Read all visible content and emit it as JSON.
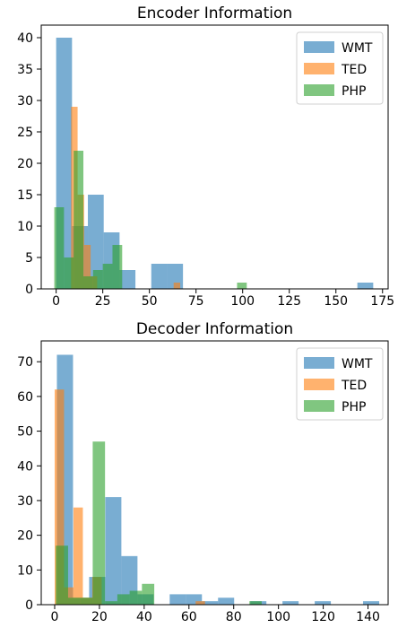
{
  "chart_data": [
    {
      "type": "bar",
      "title": "Encoder Information",
      "xlabel": "",
      "ylabel": "",
      "xlim": [
        -8,
        178
      ],
      "ylim": [
        0,
        42
      ],
      "xticks": [
        0,
        25,
        50,
        75,
        100,
        125,
        150,
        175
      ],
      "yticks": [
        0,
        5,
        10,
        15,
        20,
        25,
        30,
        35,
        40
      ],
      "legend": "top-right",
      "grid": false,
      "series": [
        {
          "name": "WMT",
          "color": "#1f77b4",
          "bins": [
            {
              "x0": 0,
              "x1": 8.5,
              "value": 40
            },
            {
              "x0": 8.5,
              "x1": 17,
              "value": 10
            },
            {
              "x0": 17,
              "x1": 25.5,
              "value": 15
            },
            {
              "x0": 25.5,
              "x1": 34,
              "value": 9
            },
            {
              "x0": 34,
              "x1": 42.5,
              "value": 3
            },
            {
              "x0": 51,
              "x1": 59.5,
              "value": 4
            },
            {
              "x0": 59.5,
              "x1": 68,
              "value": 4
            },
            {
              "x0": 161.5,
              "x1": 170,
              "value": 1
            }
          ]
        },
        {
          "name": "TED",
          "color": "#ff7f0e",
          "bins": [
            {
              "x0": 8,
              "x1": 11.5,
              "value": 29
            },
            {
              "x0": 11.5,
              "x1": 15,
              "value": 15
            },
            {
              "x0": 15,
              "x1": 18.5,
              "value": 7
            },
            {
              "x0": 18.5,
              "x1": 22,
              "value": 2
            },
            {
              "x0": 63,
              "x1": 66.5,
              "value": 1
            }
          ]
        },
        {
          "name": "PHP",
          "color": "#2ca02c",
          "bins": [
            {
              "x0": -1,
              "x1": 4.2,
              "value": 13
            },
            {
              "x0": 4.2,
              "x1": 9.4,
              "value": 5
            },
            {
              "x0": 9.4,
              "x1": 14.6,
              "value": 22
            },
            {
              "x0": 14.6,
              "x1": 19.8,
              "value": 2
            },
            {
              "x0": 19.8,
              "x1": 25,
              "value": 3
            },
            {
              "x0": 25,
              "x1": 30.2,
              "value": 4
            },
            {
              "x0": 30.2,
              "x1": 35.4,
              "value": 7
            },
            {
              "x0": 97,
              "x1": 102.2,
              "value": 1
            }
          ]
        }
      ]
    },
    {
      "type": "bar",
      "title": "Decoder Information",
      "xlabel": "",
      "ylabel": "",
      "xlim": [
        -6,
        149
      ],
      "ylim": [
        0,
        76
      ],
      "xticks": [
        0,
        20,
        40,
        60,
        80,
        100,
        120,
        140
      ],
      "yticks": [
        0,
        10,
        20,
        30,
        40,
        50,
        60,
        70
      ],
      "legend": "top-right",
      "grid": false,
      "series": [
        {
          "name": "WMT",
          "color": "#1f77b4",
          "bins": [
            {
              "x0": 1,
              "x1": 8.2,
              "value": 72
            },
            {
              "x0": 8.2,
              "x1": 15.4,
              "value": 2
            },
            {
              "x0": 15.4,
              "x1": 22.6,
              "value": 8
            },
            {
              "x0": 22.6,
              "x1": 29.8,
              "value": 31
            },
            {
              "x0": 29.8,
              "x1": 37,
              "value": 14
            },
            {
              "x0": 37,
              "x1": 44.2,
              "value": 3
            },
            {
              "x0": 51.4,
              "x1": 58.6,
              "value": 3
            },
            {
              "x0": 58.6,
              "x1": 65.8,
              "value": 3
            },
            {
              "x0": 65.8,
              "x1": 73,
              "value": 1
            },
            {
              "x0": 73,
              "x1": 80.2,
              "value": 2
            },
            {
              "x0": 87.4,
              "x1": 94.6,
              "value": 1
            },
            {
              "x0": 101.8,
              "x1": 109,
              "value": 1
            },
            {
              "x0": 116.2,
              "x1": 123.4,
              "value": 1
            },
            {
              "x0": 137.8,
              "x1": 145,
              "value": 1
            }
          ]
        },
        {
          "name": "TED",
          "color": "#ff7f0e",
          "bins": [
            {
              "x0": 0,
              "x1": 4.2,
              "value": 62
            },
            {
              "x0": 4.2,
              "x1": 8.4,
              "value": 5
            },
            {
              "x0": 8.4,
              "x1": 12.6,
              "value": 28
            },
            {
              "x0": 12.6,
              "x1": 16.8,
              "value": 2
            },
            {
              "x0": 16.8,
              "x1": 21,
              "value": 8
            },
            {
              "x0": 63,
              "x1": 67.2,
              "value": 1
            }
          ]
        },
        {
          "name": "PHP",
          "color": "#2ca02c",
          "bins": [
            {
              "x0": 0.5,
              "x1": 6,
              "value": 17
            },
            {
              "x0": 6,
              "x1": 11.5,
              "value": 2
            },
            {
              "x0": 11.5,
              "x1": 17,
              "value": 2
            },
            {
              "x0": 17,
              "x1": 22.5,
              "value": 47
            },
            {
              "x0": 22.5,
              "x1": 28,
              "value": 1
            },
            {
              "x0": 28,
              "x1": 33.5,
              "value": 3
            },
            {
              "x0": 33.5,
              "x1": 39,
              "value": 4
            },
            {
              "x0": 39,
              "x1": 44.5,
              "value": 6
            },
            {
              "x0": 87,
              "x1": 92.5,
              "value": 1
            }
          ]
        }
      ]
    }
  ]
}
